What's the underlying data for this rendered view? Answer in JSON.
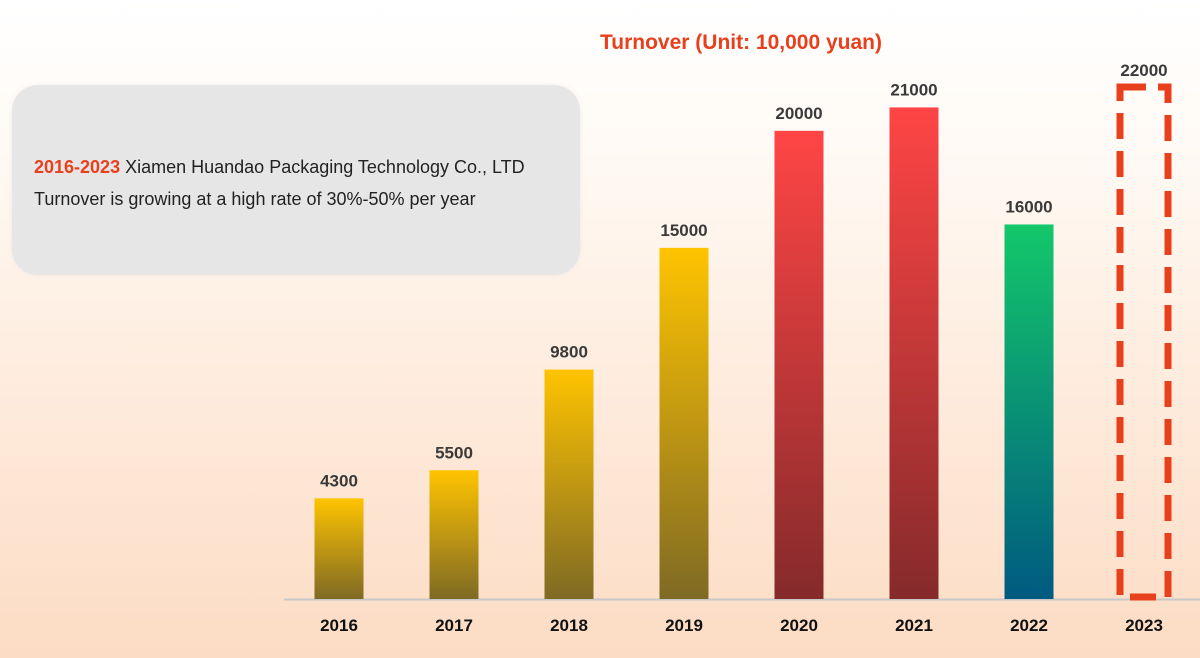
{
  "info_box": {
    "year_range": "2016-2023",
    "line1_rest": " Xiamen Huandao Packaging Technology Co., LTD",
    "line2": "Turnover is growing at a high rate of 30%-50% per year"
  },
  "chart_data": {
    "type": "bar",
    "title": "Turnover (Unit: 10,000 yuan)",
    "xlabel": "",
    "ylabel": "",
    "categories": [
      "2016",
      "2017",
      "2018",
      "2019",
      "2020",
      "2021",
      "2022",
      "2023"
    ],
    "values": [
      4300,
      5500,
      9800,
      15000,
      20000,
      21000,
      16000,
      22000
    ],
    "value_labels": [
      "4300",
      "5500",
      "9800",
      "15000",
      "20000",
      "21000",
      "16000",
      "22000"
    ],
    "ylim": [
      0,
      22000
    ],
    "grid": false,
    "legend": "none",
    "bar_styles": [
      "yellow",
      "yellow",
      "yellow",
      "yellow",
      "red",
      "red",
      "green",
      "dashed-outline"
    ],
    "colors": {
      "yellow_top": "#ffc400",
      "yellow_bottom": "#7f6a24",
      "red_top": "#ff4545",
      "red_bottom": "#852a2b",
      "green_top": "#13c86a",
      "green_bottom": "#005a80",
      "dashed_outline": "#e8401c",
      "axis": "#c8c8c8"
    }
  }
}
